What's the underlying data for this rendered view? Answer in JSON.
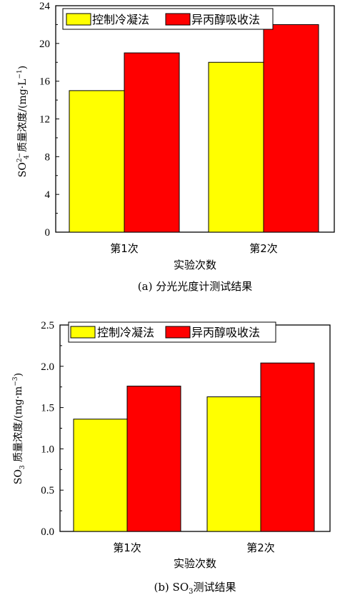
{
  "chart_data": [
    {
      "type": "bar",
      "categories": [
        "第1次",
        "第2次"
      ],
      "series": [
        {
          "name": "控制冷凝法",
          "values": [
            15,
            18
          ],
          "color": "#ffff00"
        },
        {
          "name": "异丙醇吸收法",
          "values": [
            19,
            22
          ],
          "color": "#ff0000"
        }
      ],
      "xlabel": "实验次数",
      "ylabel_main": "SO",
      "ylabel_sup": "2−",
      "ylabel_sub": "4",
      "ylabel_rest": " 质量浓度/(mg·L",
      "ylabel_unit_sup": "−1",
      "ylabel_close": ")",
      "ylim": [
        0,
        24
      ],
      "yticks": [
        "0",
        "4",
        "8",
        "12",
        "16",
        "20",
        "24"
      ],
      "caption": "(a) 分光光度计测试结果",
      "legend_position": "top-left"
    },
    {
      "type": "bar",
      "categories": [
        "第1次",
        "第2次"
      ],
      "series": [
        {
          "name": "控制冷凝法",
          "values": [
            1.36,
            1.63
          ],
          "color": "#ffff00"
        },
        {
          "name": "异丙醇吸收法",
          "values": [
            1.76,
            2.04
          ],
          "color": "#ff0000"
        }
      ],
      "xlabel": "实验次数",
      "ylabel_main": "SO",
      "ylabel_sub": "3",
      "ylabel_rest": " 质量浓度/(mg·m",
      "ylabel_unit_sup": "−3",
      "ylabel_close": ")",
      "ylim": [
        0,
        2.5
      ],
      "yticks": [
        "0.0",
        "0.5",
        "1.0",
        "1.5",
        "2.0",
        "2.5"
      ],
      "caption_prefix": "(b) SO",
      "caption_sub": "3",
      "caption_rest": "测试结果",
      "legend_position": "top-left"
    }
  ]
}
